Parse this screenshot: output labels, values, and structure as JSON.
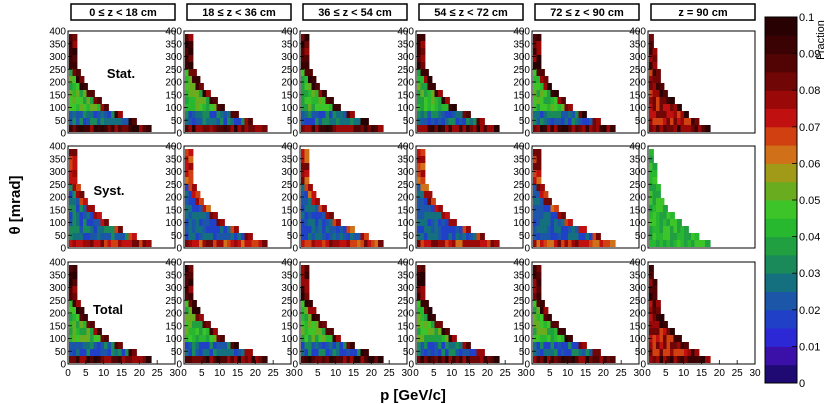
{
  "chart_data": {
    "type": "heatmap",
    "panel_titles": [
      "0 ≤ z < 18 cm",
      "18 ≤ z < 36 cm",
      "36 ≤ z < 54 cm",
      "54 ≤ z < 72 cm",
      "72 ≤ z < 90 cm",
      "z = 90 cm"
    ],
    "row_labels": [
      "Stat.",
      "Syst.",
      "Total"
    ],
    "xlabel": "p [GeV/c]",
    "ylabel": "θ [mrad]",
    "xlim": [
      0,
      30
    ],
    "ylim": [
      0,
      400
    ],
    "x_tick_labels": [
      "0",
      "5",
      "10",
      "15",
      "20",
      "25",
      "30"
    ],
    "y_tick_labels": [
      "0",
      "50",
      "100",
      "150",
      "200",
      "250",
      "300",
      "350",
      "400"
    ],
    "color_scale": {
      "label": "Fraction",
      "min": 0,
      "max": 0.1,
      "tick_labels": [
        "0",
        "0.01",
        "0.02",
        "0.03",
        "0.04",
        "0.05",
        "0.06",
        "0.07",
        "0.08",
        "0.09",
        "0.1"
      ],
      "palette": [
        "#1e0a72",
        "#3a10a8",
        "#2c28d6",
        "#2040c8",
        "#1c56a8",
        "#14707e",
        "#1a8a5a",
        "#20a040",
        "#28b830",
        "#3cc428",
        "#6aac20",
        "#a09a18",
        "#d07018",
        "#d04010",
        "#c01010",
        "#9a0808",
        "#700606",
        "#520404",
        "#3a0202",
        "#280202"
      ]
    },
    "note": "Each panel is a 2D histogram of the fractional uncertainty vs. momentum p and polar angle theta; cell colours follow the palette, values range 0 to 0.1."
  }
}
